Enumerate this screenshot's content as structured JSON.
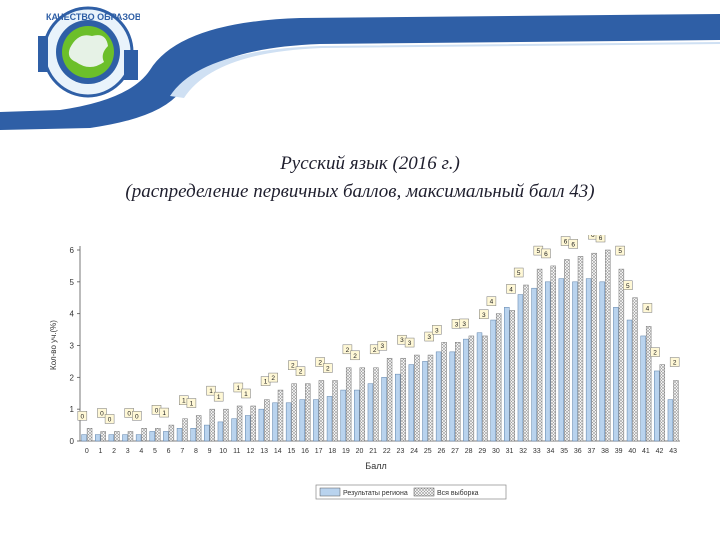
{
  "header": {
    "logo_text": "КАЧЕСТВО ОБРАЗОВАНИЯ",
    "colors": {
      "band_dark": "#2f5fa6",
      "band_light": "#cfe0f3",
      "logo_green": "#6cbf2a"
    }
  },
  "slide": {
    "title_line1": "Русский язык (2016 г.)",
    "title_line2": "(распределение первичных баллов, максимальный балл 43)"
  },
  "chart_data": {
    "type": "bar",
    "xlabel": "Балл",
    "ylabel": "Кол-во уч.(%)",
    "ylim": [
      0,
      6
    ],
    "yticks": [
      0,
      1,
      2,
      3,
      4,
      5,
      6
    ],
    "grid": false,
    "legend_position": "bottom",
    "categories": [
      "0",
      "1",
      "2",
      "3",
      "4",
      "5",
      "6",
      "7",
      "8",
      "9",
      "10",
      "11",
      "12",
      "13",
      "14",
      "15",
      "16",
      "17",
      "18",
      "19",
      "20",
      "21",
      "22",
      "23",
      "24",
      "25",
      "26",
      "27",
      "28",
      "29",
      "30",
      "31",
      "32",
      "33",
      "34",
      "35",
      "36",
      "37",
      "38",
      "39",
      "40",
      "41",
      "42",
      "43"
    ],
    "series": [
      {
        "name": "Результаты региона",
        "color": "#b9d3ee",
        "values": [
          0.2,
          0.2,
          0.2,
          0.2,
          0.2,
          0.3,
          0.3,
          0.4,
          0.4,
          0.5,
          0.6,
          0.7,
          0.8,
          1.0,
          1.2,
          1.2,
          1.3,
          1.3,
          1.4,
          1.6,
          1.6,
          1.8,
          2.0,
          2.1,
          2.4,
          2.5,
          2.8,
          2.8,
          3.2,
          3.4,
          3.8,
          4.2,
          4.6,
          4.8,
          5.0,
          5.1,
          5.0,
          5.1,
          5.0,
          4.2,
          3.8,
          3.3,
          2.2,
          1.3
        ]
      },
      {
        "name": "Вся выборка",
        "color": "#ffffff",
        "values": [
          0.4,
          0.3,
          0.3,
          0.3,
          0.4,
          0.4,
          0.5,
          0.7,
          0.8,
          1.0,
          1.0,
          1.1,
          1.1,
          1.3,
          1.6,
          1.8,
          1.8,
          1.9,
          1.9,
          2.3,
          2.3,
          2.3,
          2.6,
          2.6,
          2.7,
          2.7,
          3.1,
          3.1,
          3.3,
          3.3,
          4.0,
          4.1,
          4.9,
          5.4,
          5.5,
          5.7,
          5.8,
          5.9,
          6.0,
          5.4,
          4.5,
          3.6,
          2.4,
          1.9
        ]
      }
    ]
  }
}
